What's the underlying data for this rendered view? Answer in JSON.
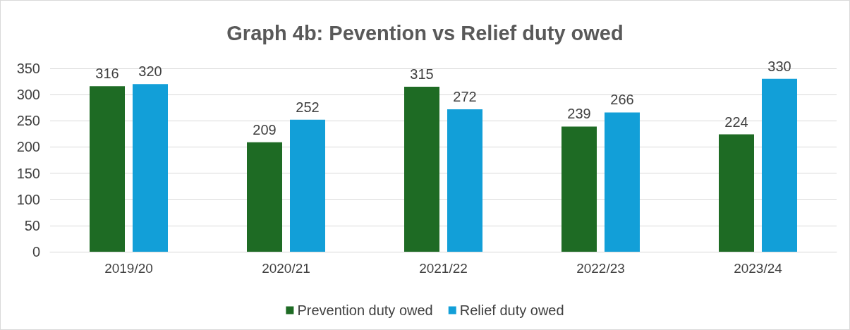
{
  "chart_data": {
    "type": "bar",
    "title": "Graph 4b: Pevention vs Relief duty owed",
    "categories": [
      "2019/20",
      "2020/21",
      "2021/22",
      "2022/23",
      "2023/24"
    ],
    "series": [
      {
        "name": "Prevention duty owed",
        "color": "#1e6b24",
        "values": [
          316,
          209,
          315,
          239,
          224
        ]
      },
      {
        "name": "Relief duty owed",
        "color": "#129fd8",
        "values": [
          320,
          252,
          272,
          266,
          330
        ]
      }
    ],
    "ylim": [
      0,
      350
    ],
    "yticks": [
      0,
      50,
      100,
      150,
      200,
      250,
      300,
      350
    ],
    "grid": "y",
    "legend": "bottom",
    "data_labels": true
  }
}
